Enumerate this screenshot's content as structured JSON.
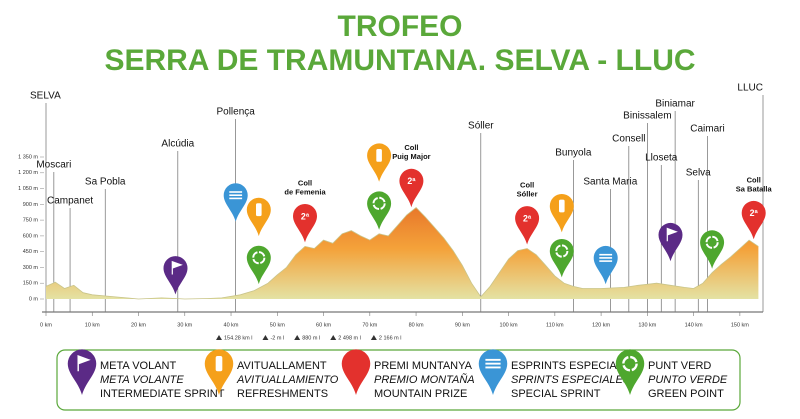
{
  "chart_data": {
    "type": "area",
    "title": "TROFEO",
    "subtitle": "SERRA DE TRAMUNTANA. SELVA - LLUC",
    "x": [
      0,
      2,
      4,
      6,
      8,
      10,
      15,
      20,
      25,
      28,
      30,
      35,
      38,
      42,
      45,
      48,
      50,
      52,
      54,
      56,
      58,
      60,
      62,
      64,
      66,
      68,
      70,
      72,
      74,
      76,
      78,
      80,
      82,
      84,
      86,
      88,
      90,
      92,
      94,
      96,
      98,
      100,
      102,
      104,
      106,
      108,
      110,
      112,
      114,
      116,
      120,
      125,
      128,
      130,
      132,
      135,
      138,
      140,
      142,
      144,
      146,
      148,
      150,
      152,
      154
    ],
    "values": [
      120,
      160,
      100,
      130,
      60,
      40,
      20,
      0,
      10,
      5,
      0,
      5,
      10,
      40,
      80,
      150,
      230,
      300,
      420,
      500,
      480,
      560,
      530,
      620,
      650,
      600,
      560,
      620,
      600,
      700,
      800,
      870,
      780,
      680,
      580,
      460,
      320,
      150,
      20,
      120,
      250,
      380,
      460,
      480,
      420,
      320,
      220,
      150,
      120,
      100,
      100,
      110,
      130,
      140,
      150,
      130,
      110,
      100,
      150,
      250,
      330,
      400,
      480,
      560,
      500
    ],
    "xlim": [
      0,
      155
    ],
    "ylim": [
      0,
      1350
    ],
    "xticks": [
      {
        "value": 0,
        "label": "0 km"
      },
      {
        "value": 10,
        "label": "10 km"
      },
      {
        "value": 20,
        "label": "20 km"
      },
      {
        "value": 30,
        "label": "30 km"
      },
      {
        "value": 40,
        "label": "40 km"
      },
      {
        "value": 50,
        "label": "50 km"
      },
      {
        "value": 60,
        "label": "60 km"
      },
      {
        "value": 70,
        "label": "70 km"
      },
      {
        "value": 80,
        "label": "80 km"
      },
      {
        "value": 90,
        "label": "90 km"
      },
      {
        "value": 100,
        "label": "100 km"
      },
      {
        "value": 110,
        "label": "110 km"
      },
      {
        "value": 120,
        "label": "120 km"
      },
      {
        "value": 130,
        "label": "130 km"
      },
      {
        "value": 140,
        "label": "140 km"
      },
      {
        "value": 150,
        "label": "150 km"
      }
    ],
    "yticks": [
      {
        "value": 0,
        "label": "0 m"
      },
      {
        "value": 150,
        "label": "150 m"
      },
      {
        "value": 300,
        "label": "300 m"
      },
      {
        "value": 450,
        "label": "450 m"
      },
      {
        "value": 600,
        "label": "600 m"
      },
      {
        "value": 750,
        "label": "750 m"
      },
      {
        "value": 900,
        "label": "900 m"
      },
      {
        "value": 1050,
        "label": "1 050 m"
      },
      {
        "value": 1200,
        "label": "1 200 m"
      },
      {
        "value": 1350,
        "label": "1 350 m"
      }
    ],
    "stats": [
      "154.28 km l",
      "-2 m l",
      "880 m l",
      "2 498 m l",
      "2 166 m l"
    ],
    "places": [
      {
        "name": "SELVA",
        "km": 0
      },
      {
        "name": "Moscari",
        "km": 1.7
      },
      {
        "name": "Campanet",
        "km": 5.2
      },
      {
        "name": "Sa Pobla",
        "km": 12.8
      },
      {
        "name": "Alcúdia",
        "km": 28.5
      },
      {
        "name": "Pollença",
        "km": 41
      },
      {
        "name": "Sóller",
        "km": 94
      },
      {
        "name": "Bunyola",
        "km": 114
      },
      {
        "name": "Santa Maria",
        "km": 122
      },
      {
        "name": "Consell",
        "km": 126
      },
      {
        "name": "Binissalem",
        "km": 130
      },
      {
        "name": "Biniamar",
        "km": 136
      },
      {
        "name": "Lloseta",
        "km": 133
      },
      {
        "name": "Selva",
        "km": 141
      },
      {
        "name": "Caimari",
        "km": 143
      },
      {
        "name": "LLUC",
        "km": 155
      }
    ],
    "pins": [
      {
        "kind": "meta",
        "km": 28
      },
      {
        "kind": "sprint",
        "km": 41
      },
      {
        "kind": "avit",
        "km": 46
      },
      {
        "kind": "verd",
        "km": 46
      },
      {
        "kind": "mount",
        "km": 56,
        "category": "2ª",
        "label": [
          "Coll",
          "de Femenia"
        ]
      },
      {
        "kind": "avit",
        "km": 72
      },
      {
        "kind": "verd",
        "km": 72
      },
      {
        "kind": "mount",
        "km": 79,
        "category": "2ª",
        "label": [
          "Coll",
          "Puig Major"
        ]
      },
      {
        "kind": "mount",
        "km": 104,
        "category": "2ª",
        "label": [
          "Coll",
          "Sóller"
        ]
      },
      {
        "kind": "avit",
        "km": 111.5
      },
      {
        "kind": "verd",
        "km": 111.5
      },
      {
        "kind": "sprint",
        "km": 121
      },
      {
        "kind": "meta",
        "km": 135
      },
      {
        "kind": "verd",
        "km": 144
      },
      {
        "kind": "mount",
        "km": 153,
        "category": "2ª",
        "label": [
          "Coll",
          "Sa Batalla"
        ]
      }
    ],
    "legend": [
      {
        "kind": "meta",
        "color": "#5b2a86",
        "title": "META VOLANT",
        "local": "META VOLANTE",
        "english": "INTERMEDIATE SPRINT"
      },
      {
        "kind": "avit",
        "color": "#f5a01a",
        "title": "AVITUALLAMENT",
        "local": "AVITUALLAMIENTO",
        "english": "REFRESHMENTS"
      },
      {
        "kind": "mount",
        "color": "#e3312d",
        "title": "PREMI MUNTANYA",
        "local": "PREMIO MONTAÑA",
        "english": "MOUNTAIN PRIZE"
      },
      {
        "kind": "sprint",
        "color": "#3a95d6",
        "title": "ESPRINTS ESPECIALS",
        "local": "SPRINTS ESPECIALES",
        "english": "SPECIAL SPRINT"
      },
      {
        "kind": "verd",
        "color": "#4ea72e",
        "title": "PUNT VERD",
        "local": "PUNTO VERDE",
        "english": "GREEN POINT"
      }
    ]
  }
}
